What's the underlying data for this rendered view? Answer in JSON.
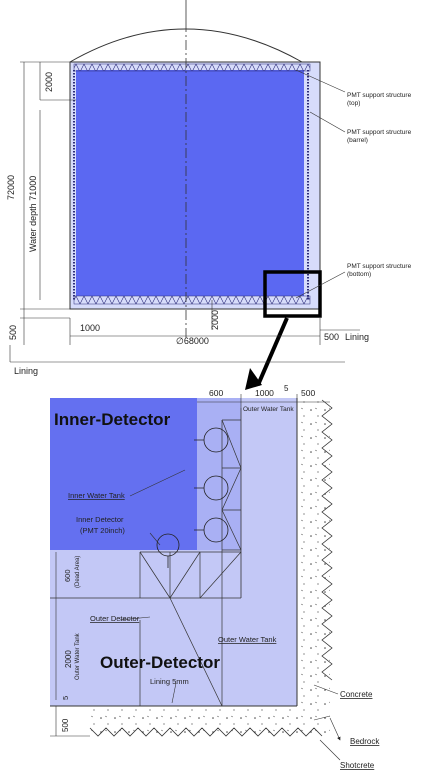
{
  "top_view": {
    "dim_2000_top": "2000",
    "dim_72000": "72000",
    "dim_water_depth": "Water depth 71000",
    "dim_500_left": "500",
    "dim_1000_bottom": "1000",
    "dim_2000_inner": "2000",
    "dim_diameter": "∅68000",
    "dim_500_right": "500",
    "lining_right": "Lining",
    "lining_bottom": "Lining",
    "pmt_top_1": "PMT support structure",
    "pmt_top_2": "(top)",
    "pmt_barrel_1": "PMT support structure",
    "pmt_barrel_2": "(barrel)",
    "pmt_bottom_1": "PMT support structure",
    "pmt_bottom_2": "(bottom)"
  },
  "detail_view": {
    "dim_600": "600",
    "dim_1000": "1000",
    "dim_5_top": "5",
    "dim_500_top": "500",
    "outer_water_tank_top": "Outer Water Tank",
    "inner_detector_title": "Inner-Detector",
    "inner_water_tank": "Inner Water Tank",
    "inner_detector_1": "Inner Detector",
    "inner_detector_2": "(PMT 20inch)",
    "dead_area_num": "600",
    "dead_area_label": "(Dead Area)",
    "outer_detector": "Outer Detector",
    "outer_water_tank_mid": "Outer Water Tank",
    "dim_2000_side": "2000",
    "outer_water_tank_side": "Outer Water Tank",
    "outer_detector_title": "Outer-Detector",
    "lining_5mm": "Lining 5mm",
    "dim_5_left": "5",
    "dim_500_left": "500",
    "concrete": "Concrete",
    "bedrock": "Bedrock",
    "shotcrete": "Shotcrete"
  },
  "colors": {
    "inner_blue": "#5b68f2",
    "outer_blue": "#bcc2f7",
    "detail_inner": "#6470f0",
    "detail_outer": "#c3c8f6"
  }
}
